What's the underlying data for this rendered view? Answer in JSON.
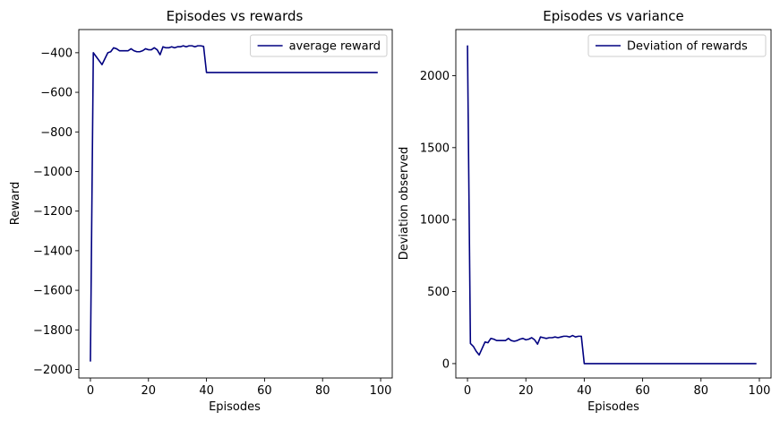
{
  "chart_data": [
    {
      "type": "line",
      "title": "Episodes vs rewards",
      "xlabel": "Episodes",
      "ylabel": "Reward",
      "xlim": [
        -4,
        104
      ],
      "ylim": [
        -2043,
        -283
      ],
      "xticks": [
        0,
        20,
        40,
        60,
        80,
        100
      ],
      "yticks": [
        -2000,
        -1800,
        -1600,
        -1400,
        -1200,
        -1000,
        -800,
        -600,
        -400
      ],
      "xtick_labels": [
        "0",
        "20",
        "40",
        "60",
        "80",
        "100"
      ],
      "ytick_labels": [
        "−2000",
        "−1800",
        "−1600",
        "−1400",
        "−1200",
        "−1000",
        "−800",
        "−600",
        "−400"
      ],
      "legend": "top-right",
      "grid": false,
      "series": [
        {
          "name": "average reward",
          "color": "#000080",
          "x": [
            0,
            1,
            2,
            3,
            4,
            5,
            6,
            7,
            8,
            9,
            10,
            11,
            12,
            13,
            14,
            15,
            16,
            17,
            18,
            19,
            20,
            21,
            22,
            23,
            24,
            25,
            26,
            27,
            28,
            29,
            30,
            31,
            32,
            33,
            34,
            35,
            36,
            37,
            38,
            39,
            40,
            41,
            42,
            43,
            44,
            45,
            46,
            47,
            48,
            49,
            50,
            51,
            52,
            53,
            54,
            55,
            56,
            57,
            58,
            59,
            60,
            61,
            62,
            63,
            64,
            65,
            66,
            67,
            68,
            69,
            70,
            71,
            72,
            73,
            74,
            75,
            76,
            77,
            78,
            79,
            80,
            81,
            82,
            83,
            84,
            85,
            86,
            87,
            88,
            89,
            90,
            91,
            92,
            93,
            94,
            95,
            96,
            97,
            98,
            99
          ],
          "y": [
            -1960,
            -400,
            -420,
            -440,
            -460,
            -430,
            -400,
            -395,
            -375,
            -380,
            -390,
            -390,
            -390,
            -390,
            -380,
            -390,
            -395,
            -395,
            -390,
            -380,
            -385,
            -385,
            -375,
            -385,
            -410,
            -370,
            -375,
            -375,
            -370,
            -375,
            -370,
            -370,
            -365,
            -370,
            -365,
            -365,
            -370,
            -365,
            -365,
            -368,
            -500,
            -500,
            -500,
            -500,
            -500,
            -500,
            -500,
            -500,
            -500,
            -500,
            -500,
            -500,
            -500,
            -500,
            -500,
            -500,
            -500,
            -500,
            -500,
            -500,
            -500,
            -500,
            -500,
            -500,
            -500,
            -500,
            -500,
            -500,
            -500,
            -500,
            -500,
            -500,
            -500,
            -500,
            -500,
            -500,
            -500,
            -500,
            -500,
            -500,
            -500,
            -500,
            -500,
            -500,
            -500,
            -500,
            -500,
            -500,
            -500,
            -500,
            -500,
            -500,
            -500,
            -500,
            -500,
            -500,
            -500,
            -500,
            -500,
            -500
          ]
        }
      ]
    },
    {
      "type": "line",
      "title": "Episodes vs variance",
      "xlabel": "Episodes",
      "ylabel": "Deviation observed",
      "xlim": [
        -4,
        104
      ],
      "ylim": [
        -100,
        2320
      ],
      "xticks": [
        0,
        20,
        40,
        60,
        80,
        100
      ],
      "yticks": [
        0,
        500,
        1000,
        1500,
        2000
      ],
      "xtick_labels": [
        "0",
        "20",
        "40",
        "60",
        "80",
        "100"
      ],
      "ytick_labels": [
        "0",
        "500",
        "1000",
        "1500",
        "2000"
      ],
      "legend": "top-right",
      "grid": false,
      "series": [
        {
          "name": "Deviation of rewards",
          "color": "#000080",
          "x": [
            0,
            1,
            2,
            3,
            4,
            5,
            6,
            7,
            8,
            9,
            10,
            11,
            12,
            13,
            14,
            15,
            16,
            17,
            18,
            19,
            20,
            21,
            22,
            23,
            24,
            25,
            26,
            27,
            28,
            29,
            30,
            31,
            32,
            33,
            34,
            35,
            36,
            37,
            38,
            39,
            40,
            41,
            42,
            43,
            44,
            45,
            46,
            47,
            48,
            49,
            50,
            51,
            52,
            53,
            54,
            55,
            56,
            57,
            58,
            59,
            60,
            61,
            62,
            63,
            64,
            65,
            66,
            67,
            68,
            69,
            70,
            71,
            72,
            73,
            74,
            75,
            76,
            77,
            78,
            79,
            80,
            81,
            82,
            83,
            84,
            85,
            86,
            87,
            88,
            89,
            90,
            91,
            92,
            93,
            94,
            95,
            96,
            97,
            98,
            99
          ],
          "y": [
            2210,
            140,
            120,
            85,
            60,
            105,
            150,
            145,
            175,
            170,
            160,
            160,
            160,
            160,
            175,
            160,
            155,
            160,
            170,
            175,
            165,
            170,
            180,
            165,
            135,
            185,
            180,
            175,
            180,
            180,
            185,
            180,
            185,
            190,
            190,
            185,
            195,
            185,
            190,
            190,
            0,
            0,
            0,
            0,
            0,
            0,
            0,
            0,
            0,
            0,
            0,
            0,
            0,
            0,
            0,
            0,
            0,
            0,
            0,
            0,
            0,
            0,
            0,
            0,
            0,
            0,
            0,
            0,
            0,
            0,
            0,
            0,
            0,
            0,
            0,
            0,
            0,
            0,
            0,
            0,
            0,
            0,
            0,
            0,
            0,
            0,
            0,
            0,
            0,
            0,
            0,
            0,
            0,
            0,
            0,
            0,
            0,
            0,
            0,
            0
          ]
        }
      ]
    }
  ]
}
